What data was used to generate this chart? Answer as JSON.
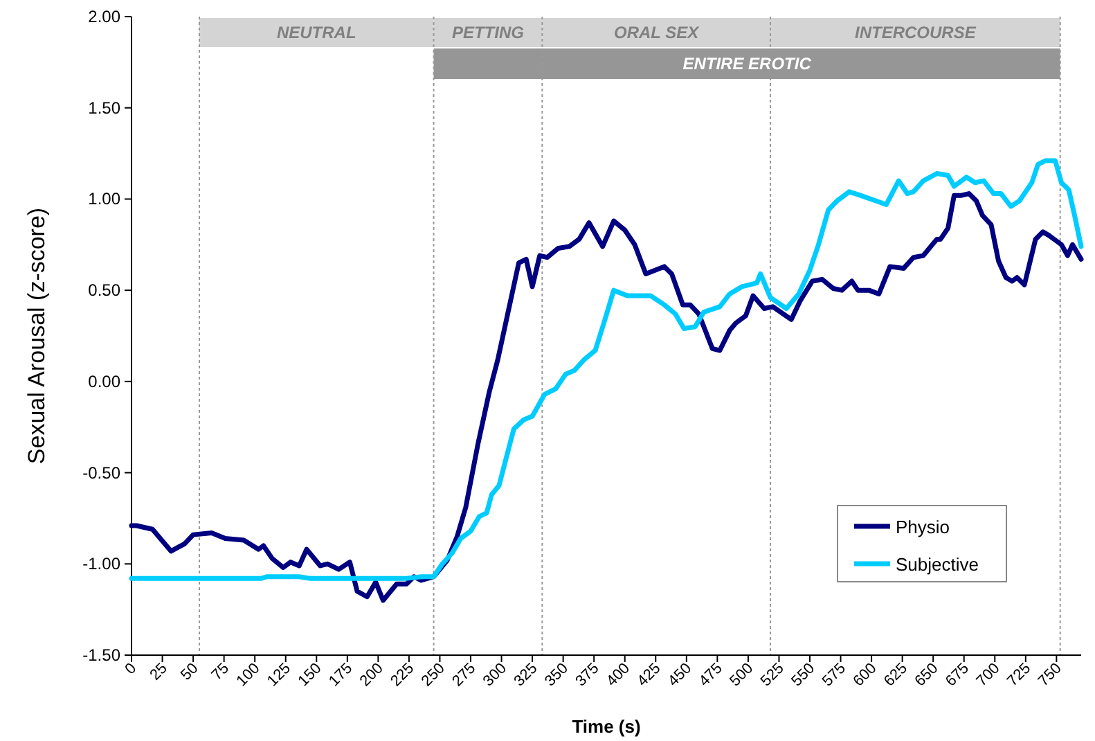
{
  "chart_data": {
    "type": "line",
    "xlabel": "Time (s)",
    "ylabel": "Sexual Arousal (z-score)",
    "xlim": [
      0,
      770
    ],
    "xticks": [
      0,
      25,
      50,
      75,
      100,
      125,
      150,
      175,
      200,
      225,
      250,
      275,
      300,
      325,
      350,
      375,
      400,
      425,
      450,
      475,
      500,
      525,
      550,
      575,
      600,
      625,
      650,
      675,
      700,
      725,
      750
    ],
    "ylim": [
      -1.5,
      2
    ],
    "yticks": [
      {
        "value": -1.5,
        "label": "-1.50"
      },
      {
        "value": -1,
        "label": "-1.00"
      },
      {
        "value": -0.5,
        "label": "-0.50"
      },
      {
        "value": 0,
        "label": "0.00"
      },
      {
        "value": 0.5,
        "label": "0.50"
      },
      {
        "value": 1,
        "label": "1.00"
      },
      {
        "value": 1.5,
        "label": "1.50"
      },
      {
        "value": 2,
        "label": "2.00"
      }
    ],
    "grid": false,
    "legend": "bottom right",
    "marker": "none",
    "line_style": "solid",
    "bands": [
      {
        "axis": "x",
        "from": 55,
        "to": 245,
        "label": "NEUTRAL",
        "color": "#d4d4d4"
      },
      {
        "axis": "x",
        "from": 245,
        "to": 333,
        "label": "PETTING",
        "color": "#d4d4d4"
      },
      {
        "axis": "x",
        "from": 333,
        "to": 518,
        "label": "ORAL SEX",
        "color": "#d4d4d4"
      },
      {
        "axis": "x",
        "from": 518,
        "to": 753,
        "label": "INTERCOURSE",
        "color": "#d4d4d4"
      },
      {
        "axis": "x",
        "from": 245,
        "to": 753,
        "label": "ENTIRE EROTIC",
        "color": "#969696"
      }
    ],
    "ref_lines": [
      {
        "axis": "x",
        "value": 55,
        "color": "#999999",
        "line_style": "dotted"
      },
      {
        "axis": "x",
        "value": 245,
        "color": "#999999",
        "line_style": "dotted"
      },
      {
        "axis": "x",
        "value": 333,
        "color": "#999999",
        "line_style": "dotted"
      },
      {
        "axis": "x",
        "value": 518,
        "color": "#999999",
        "line_style": "dotted"
      },
      {
        "axis": "x",
        "value": 753,
        "color": "#999999",
        "line_style": "dotted"
      }
    ],
    "series": [
      {
        "name": "Physio",
        "color": "#000080",
        "x": [
          0,
          4,
          17,
          32,
          43,
          50,
          65,
          76,
          91,
          103,
          107,
          114,
          123,
          129,
          136,
          142,
          153,
          159,
          168,
          177,
          183,
          191,
          198,
          204,
          215,
          223,
          229,
          235,
          245,
          256,
          264,
          271,
          281,
          290,
          297,
          305,
          314,
          320,
          325,
          331,
          337,
          346,
          355,
          363,
          371,
          382,
          391,
          400,
          408,
          417,
          432,
          438,
          447,
          453,
          460,
          471,
          477,
          485,
          490,
          498,
          504,
          513,
          520,
          535,
          542,
          552,
          560,
          569,
          576,
          584,
          589,
          598,
          606,
          615,
          626,
          634,
          642,
          653,
          656,
          662,
          667,
          673,
          679,
          685,
          690,
          697,
          703,
          709,
          714,
          718,
          724,
          733,
          739,
          744,
          754,
          759,
          763,
          770
        ],
        "values": [
          -0.79,
          -0.79,
          -0.81,
          -0.93,
          -0.89,
          -0.84,
          -0.83,
          -0.86,
          -0.87,
          -0.92,
          -0.9,
          -0.97,
          -1.02,
          -0.99,
          -1.01,
          -0.92,
          -1.01,
          -1.0,
          -1.03,
          -0.99,
          -1.15,
          -1.18,
          -1.1,
          -1.2,
          -1.11,
          -1.11,
          -1.07,
          -1.09,
          -1.07,
          -0.98,
          -0.85,
          -0.69,
          -0.34,
          -0.06,
          0.12,
          0.37,
          0.65,
          0.67,
          0.52,
          0.69,
          0.68,
          0.73,
          0.74,
          0.78,
          0.87,
          0.74,
          0.88,
          0.83,
          0.75,
          0.59,
          0.63,
          0.59,
          0.42,
          0.42,
          0.37,
          0.18,
          0.17,
          0.28,
          0.32,
          0.36,
          0.47,
          0.4,
          0.41,
          0.34,
          0.44,
          0.55,
          0.56,
          0.51,
          0.5,
          0.55,
          0.5,
          0.5,
          0.48,
          0.63,
          0.62,
          0.68,
          0.69,
          0.78,
          0.78,
          0.84,
          1.02,
          1.02,
          1.03,
          0.99,
          0.91,
          0.86,
          0.66,
          0.57,
          0.55,
          0.57,
          0.53,
          0.78,
          0.82,
          0.8,
          0.75,
          0.69,
          0.75,
          0.67
        ]
      },
      {
        "name": "Subjective",
        "color": "#00ccff",
        "x": [
          0,
          4,
          105,
          110,
          136,
          145,
          222,
          235,
          245,
          252,
          260,
          267,
          275,
          282,
          288,
          292,
          298,
          303,
          310,
          318,
          325,
          335,
          344,
          352,
          359,
          367,
          376,
          383,
          391,
          402,
          421,
          432,
          441,
          448,
          457,
          464,
          477,
          485,
          495,
          507,
          510,
          518,
          531,
          541,
          550,
          557,
          565,
          572,
          582,
          591,
          612,
          622,
          629,
          634,
          642,
          653,
          662,
          667,
          677,
          684,
          691,
          699,
          705,
          713,
          720,
          730,
          735,
          741,
          749,
          754,
          760,
          765,
          770
        ],
        "values": [
          -1.08,
          -1.08,
          -1.08,
          -1.07,
          -1.07,
          -1.08,
          -1.08,
          -1.07,
          -1.07,
          -1.0,
          -0.94,
          -0.86,
          -0.82,
          -0.74,
          -0.72,
          -0.62,
          -0.57,
          -0.44,
          -0.26,
          -0.21,
          -0.19,
          -0.07,
          -0.04,
          0.04,
          0.06,
          0.12,
          0.17,
          0.32,
          0.5,
          0.47,
          0.47,
          0.42,
          0.37,
          0.29,
          0.3,
          0.38,
          0.41,
          0.48,
          0.52,
          0.54,
          0.59,
          0.46,
          0.4,
          0.48,
          0.61,
          0.75,
          0.94,
          0.99,
          1.04,
          1.02,
          0.97,
          1.1,
          1.03,
          1.04,
          1.1,
          1.14,
          1.13,
          1.07,
          1.12,
          1.09,
          1.1,
          1.03,
          1.03,
          0.96,
          0.99,
          1.09,
          1.19,
          1.21,
          1.21,
          1.09,
          1.05,
          0.9,
          0.74
        ]
      }
    ]
  }
}
